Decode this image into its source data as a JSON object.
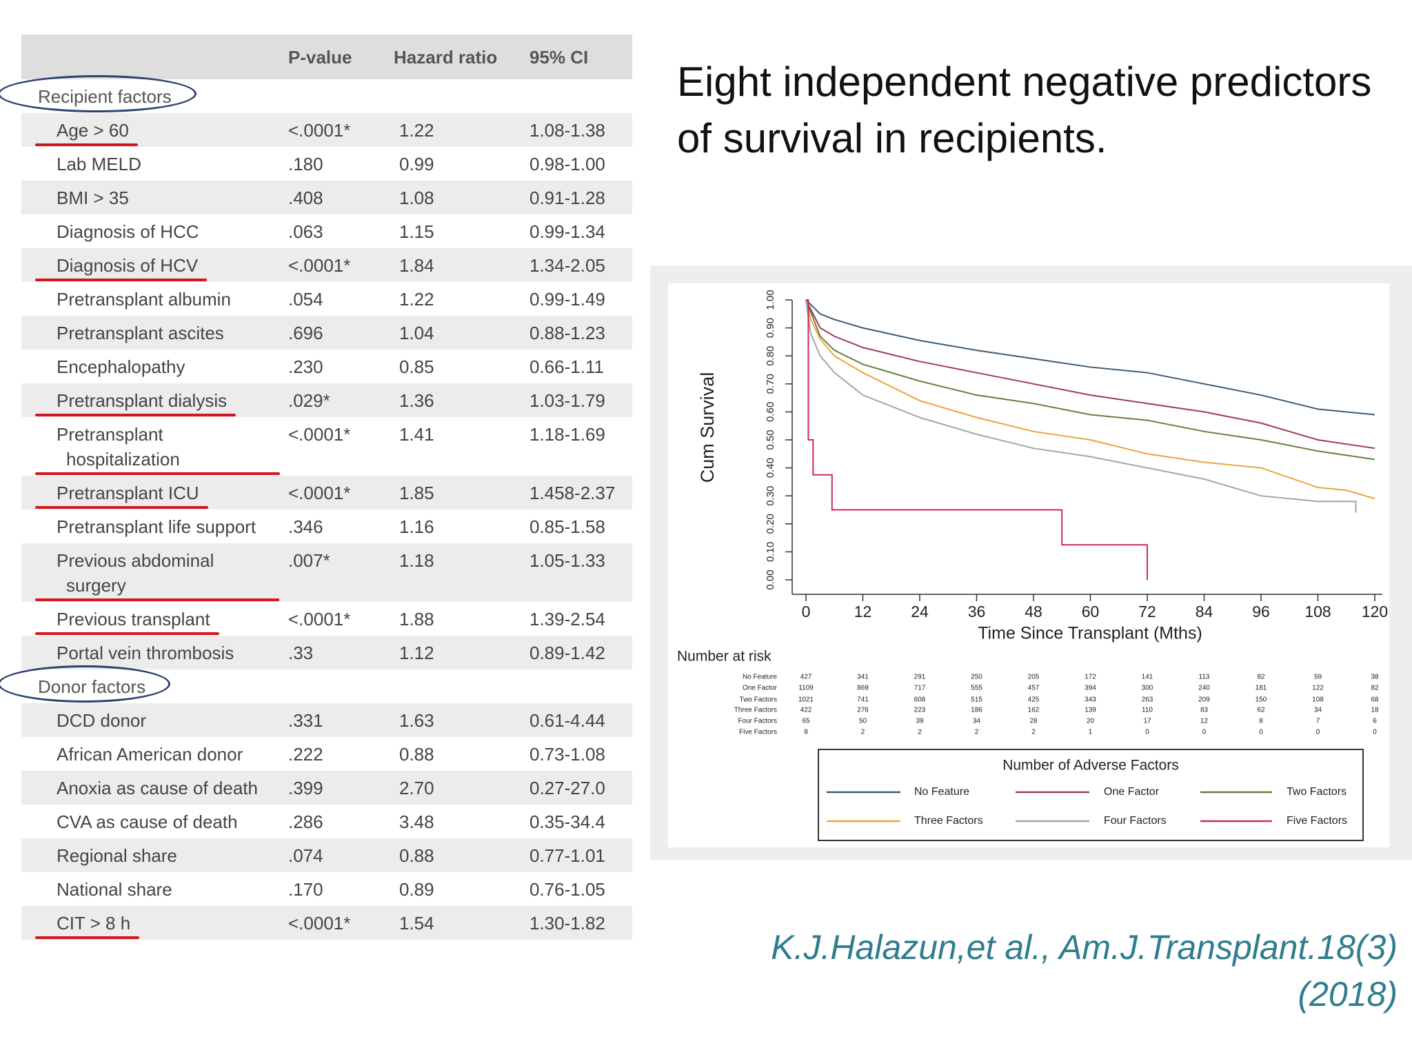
{
  "heading": "Eight independent negative predictors of survival in recipients.",
  "citation": "K.J.Halazun,et al., Am.J.Transplant.18(3) (2018)",
  "table": {
    "columns": [
      "P-value",
      "Hazard ratio",
      "95% CI"
    ],
    "sections": [
      {
        "title": "Recipient factors",
        "rows": [
          [
            "Age > 60",
            "<.0001*",
            "1.22",
            "1.08-1.38"
          ],
          [
            "Lab MELD",
            ".180",
            "0.99",
            "0.98-1.00"
          ],
          [
            "BMI > 35",
            ".408",
            "1.08",
            "0.91-1.28"
          ],
          [
            "Diagnosis of HCC",
            ".063",
            "1.15",
            "0.99-1.34"
          ],
          [
            "Diagnosis of HCV",
            "<.0001*",
            "1.84",
            "1.34-2.05"
          ],
          [
            "Pretransplant albumin",
            ".054",
            "1.22",
            "0.99-1.49"
          ],
          [
            "Pretransplant ascites",
            ".696",
            "1.04",
            "0.88-1.23"
          ],
          [
            "Encephalopathy",
            ".230",
            "0.85",
            "0.66-1.11"
          ],
          [
            "Pretransplant dialysis",
            ".029*",
            "1.36",
            "1.03-1.79"
          ],
          [
            "Pretransplant hospitalization",
            "<.0001*",
            "1.41",
            "1.18-1.69"
          ],
          [
            "Pretransplant ICU",
            "<.0001*",
            "1.85",
            "1.458-2.37"
          ],
          [
            "Pretransplant life support",
            ".346",
            "1.16",
            "0.85-1.58"
          ],
          [
            "Previous abdominal surgery",
            ".007*",
            "1.18",
            "1.05-1.33"
          ],
          [
            "Previous transplant",
            "<.0001*",
            "1.88",
            "1.39-2.54"
          ],
          [
            "Portal vein thrombosis",
            ".33",
            "1.12",
            "0.89-1.42"
          ]
        ]
      },
      {
        "title": "Donor factors",
        "rows": [
          [
            "DCD donor",
            ".331",
            "1.63",
            "0.61-4.44"
          ],
          [
            "African American donor",
            ".222",
            "0.88",
            "0.73-1.08"
          ],
          [
            "Anoxia as cause of death",
            ".399",
            "2.70",
            "0.27-27.0"
          ],
          [
            "CVA as cause of death",
            ".286",
            "3.48",
            "0.35-34.4"
          ],
          [
            "Regional share",
            ".074",
            "0.88",
            "0.77-1.01"
          ],
          [
            "National share",
            ".170",
            "0.89",
            "0.76-1.05"
          ],
          [
            "CIT > 8 h",
            "<.0001*",
            "1.54",
            "1.30-1.82"
          ]
        ]
      }
    ]
  },
  "chart_data": {
    "type": "line",
    "x_label": "Time Since Transplant (Mths)",
    "y_label": "Cum Survival",
    "xlim": [
      0,
      120
    ],
    "xticks": [
      0,
      12,
      24,
      36,
      48,
      60,
      72,
      84,
      96,
      108,
      120
    ],
    "ylim": [
      0,
      1
    ],
    "yticks": [
      {
        "value": 0,
        "label": "0.00"
      },
      {
        "value": 0.1,
        "label": "0.10"
      },
      {
        "value": 0.2,
        "label": "0.20"
      },
      {
        "value": 0.3,
        "label": "0.30"
      },
      {
        "value": 0.4,
        "label": "0.40"
      },
      {
        "value": 0.5,
        "label": "0.50"
      },
      {
        "value": 0.6,
        "label": "0.60"
      },
      {
        "value": 0.7,
        "label": "0.70"
      },
      {
        "value": 0.8,
        "label": "0.80"
      },
      {
        "value": 0.9,
        "label": "0.90"
      },
      {
        "value": 1,
        "label": "1.00"
      }
    ],
    "legend_title": "Number of Adverse Factors",
    "risk_title": "Number at risk",
    "series": [
      {
        "name": "No Feature",
        "color": "#3e5a72",
        "x": [
          0,
          3,
          6,
          12,
          24,
          36,
          48,
          60,
          72,
          84,
          96,
          108,
          120
        ],
        "values": [
          1,
          0.95,
          0.93,
          0.9,
          0.855,
          0.82,
          0.79,
          0.76,
          0.74,
          0.7,
          0.66,
          0.61,
          0.59
        ],
        "at_risk": [
          427,
          341,
          291,
          250,
          205,
          172,
          141,
          113,
          82,
          59,
          38
        ]
      },
      {
        "name": "One Factor",
        "color": "#9b3b5c",
        "x": [
          0,
          3,
          6,
          12,
          24,
          36,
          48,
          60,
          72,
          84,
          96,
          108,
          120
        ],
        "values": [
          1,
          0.9,
          0.87,
          0.83,
          0.78,
          0.74,
          0.7,
          0.66,
          0.63,
          0.6,
          0.56,
          0.5,
          0.47
        ],
        "at_risk": [
          1109,
          869,
          717,
          555,
          457,
          394,
          300,
          240,
          181,
          122,
          82
        ]
      },
      {
        "name": "Two Factors",
        "color": "#6b7d3c",
        "x": [
          0,
          3,
          6,
          12,
          24,
          36,
          48,
          60,
          72,
          84,
          96,
          108,
          120
        ],
        "values": [
          1,
          0.87,
          0.82,
          0.77,
          0.71,
          0.66,
          0.63,
          0.59,
          0.57,
          0.53,
          0.5,
          0.46,
          0.43
        ],
        "at_risk": [
          1021,
          741,
          608,
          515,
          425,
          343,
          263,
          209,
          150,
          108,
          68
        ]
      },
      {
        "name": "Three Factors",
        "color": "#eaa43c",
        "x": [
          0,
          1,
          3,
          6,
          12,
          24,
          36,
          48,
          60,
          72,
          84,
          96,
          108,
          114,
          120
        ],
        "values": [
          1,
          0.93,
          0.86,
          0.8,
          0.74,
          0.64,
          0.58,
          0.53,
          0.5,
          0.45,
          0.42,
          0.4,
          0.33,
          0.32,
          0.29
        ],
        "at_risk": [
          422,
          276,
          223,
          186,
          162,
          139,
          110,
          83,
          62,
          34,
          18
        ]
      },
      {
        "name": "Four Factors",
        "color": "#9ca7ae",
        "x": [
          0,
          1,
          3,
          6,
          12,
          24,
          36,
          48,
          60,
          72,
          84,
          96,
          108,
          116,
          116
        ],
        "values": [
          1,
          0.88,
          0.8,
          0.74,
          0.66,
          0.58,
          0.52,
          0.47,
          0.44,
          0.4,
          0.36,
          0.3,
          0.28,
          0.28,
          0.24
        ],
        "at_risk": [
          65,
          50,
          39,
          34,
          28,
          20,
          17,
          12,
          8,
          7,
          6
        ]
      },
      {
        "name": "Five Factors",
        "color": "#cc2a5c",
        "x": [
          0,
          0.5,
          0.5,
          1.5,
          1.5,
          5.5,
          5.5,
          54,
          54,
          72,
          72
        ],
        "values": [
          1,
          1,
          0.5,
          0.5,
          0.375,
          0.375,
          0.25,
          0.25,
          0.125,
          0.125,
          0
        ],
        "at_risk": [
          8,
          2,
          2,
          2,
          2,
          1,
          0,
          0,
          0,
          0,
          0
        ]
      }
    ]
  }
}
